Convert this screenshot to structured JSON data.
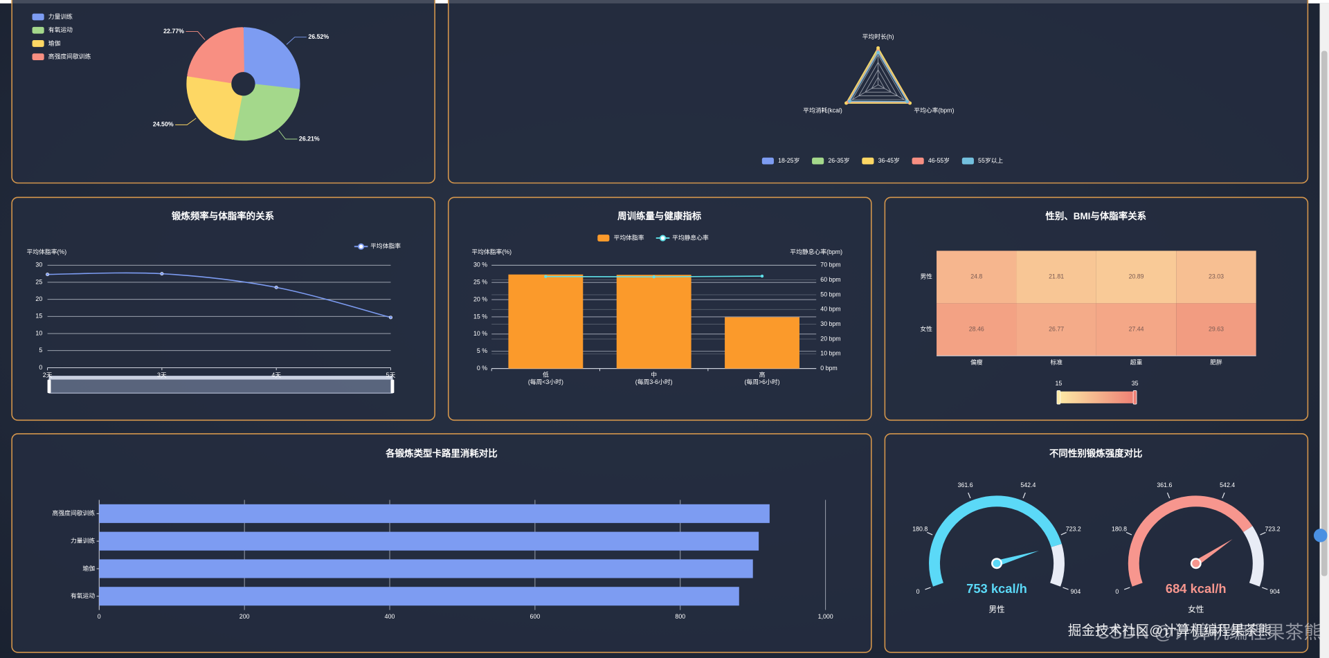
{
  "chart_data": [
    {
      "type": "pie",
      "categories": [
        "力量训练",
        "有氧运动",
        "瑜伽",
        "高强度间歇训练"
      ],
      "values": [
        26.52,
        26.21,
        24.5,
        22.77
      ],
      "value_labels": [
        "26.52%",
        "26.21%",
        "24.50%",
        "22.77%"
      ],
      "colors": [
        "#7d9cf2",
        "#a4d88b",
        "#fdd764",
        "#f88f82"
      ],
      "legend": "top-left"
    },
    {
      "type": "radar",
      "indicators": [
        {
          "name": "平均时长(h)",
          "max": 1.5
        },
        {
          "name": "平均消耗(kcal)",
          "max": 600
        },
        {
          "name": "平均心率(bpm)",
          "max": 150
        }
      ],
      "series": [
        {
          "name": "18-25岁",
          "color": "#7d9cf2",
          "values": [
            1.38,
            560,
            141
          ]
        },
        {
          "name": "26-35岁",
          "color": "#a4d88b",
          "values": [
            1.42,
            575,
            143
          ]
        },
        {
          "name": "36-45岁",
          "color": "#fdd764",
          "values": [
            1.48,
            592,
            148
          ]
        },
        {
          "name": "46-55岁",
          "color": "#f88f82",
          "values": [
            1.35,
            550,
            139
          ]
        },
        {
          "name": "55岁以上",
          "color": "#73c0de",
          "values": [
            1.3,
            530,
            135
          ]
        }
      ],
      "legend": "bottom"
    },
    {
      "type": "line",
      "title": "锻炼频率与体脂率的关系",
      "y_label": "平均体脂率(%)",
      "categories": [
        "2天",
        "3天",
        "4天",
        "5天"
      ],
      "series": [
        {
          "name": "平均体脂率",
          "color": "#7d9cf2",
          "values": [
            27.3,
            27.5,
            23.5,
            14.7
          ]
        }
      ],
      "ylim": [
        0,
        30
      ],
      "yticks": [
        0,
        5,
        10,
        15,
        20,
        25,
        30
      ],
      "grid": true,
      "smooth": true,
      "legend": "top-right",
      "data_zoom": true
    },
    {
      "type": "bar",
      "title": "周训练量与健康指标",
      "y_label": "平均体脂率(%)",
      "y2_label": "平均静息心率(bpm)",
      "categories": [
        "低\n(每周<3小时)",
        "中\n(每周3-6小时)",
        "高\n(每周>6小时)"
      ],
      "series": [
        {
          "name": "平均体脂率",
          "type": "bar",
          "color": "#fb9a2b",
          "values": [
            27.3,
            27.2,
            14.9
          ]
        },
        {
          "name": "平均静息心率",
          "type": "line",
          "axis": "y2",
          "color": "#5ee0e8",
          "values": [
            62.3,
            62.1,
            62.6
          ]
        }
      ],
      "ylim": [
        0,
        30
      ],
      "yticks": [
        {
          "value": 0,
          "label": "0 %"
        },
        {
          "value": 5,
          "label": "5 %"
        },
        {
          "value": 10,
          "label": "10 %"
        },
        {
          "value": 15,
          "label": "15 %"
        },
        {
          "value": 20,
          "label": "20 %"
        },
        {
          "value": 25,
          "label": "25 %"
        },
        {
          "value": 30,
          "label": "30 %"
        }
      ],
      "y2lim": [
        0,
        70
      ],
      "y2ticks": [
        {
          "value": 0,
          "label": "0 bpm"
        },
        {
          "value": 10,
          "label": "10 bpm"
        },
        {
          "value": 20,
          "label": "20 bpm"
        },
        {
          "value": 30,
          "label": "30 bpm"
        },
        {
          "value": 40,
          "label": "40 bpm"
        },
        {
          "value": 50,
          "label": "50 bpm"
        },
        {
          "value": 60,
          "label": "60 bpm"
        },
        {
          "value": 70,
          "label": "70 bpm"
        }
      ],
      "grid": true,
      "legend": "top"
    },
    {
      "type": "heatmap",
      "title": "性别、BMI与体脂率关系",
      "rows": [
        "男性",
        "女性"
      ],
      "columns": [
        "偏瘦",
        "标准",
        "超重",
        "肥胖"
      ],
      "values": [
        [
          24.8,
          21.81,
          20.89,
          23.03
        ],
        [
          28.46,
          26.77,
          27.44,
          29.63
        ]
      ],
      "visual_range": [
        15,
        35
      ],
      "colors": [
        "#fdeaa6",
        "#ee7f74"
      ]
    },
    {
      "type": "bar",
      "horizontal": true,
      "title": "各锻炼类型卡路里消耗对比",
      "categories": [
        "有氧运动",
        "瑜伽",
        "力量训练",
        "高强度间歇训练"
      ],
      "values": [
        881,
        900,
        908,
        923
      ],
      "color": "#7d9cf2",
      "xlim": [
        0,
        1000
      ],
      "xticks": [
        0,
        200,
        400,
        600,
        800,
        {
          "value": 1000,
          "label": "1,000"
        }
      ],
      "grid": true
    },
    {
      "type": "gauge",
      "title": "不同性别锻炼强度对比",
      "categories": [
        "男性",
        "女性"
      ],
      "values": [
        753,
        684
      ],
      "value_labels": [
        "753 kcal/h",
        "684 kcal/h"
      ],
      "colors": [
        "#5bd9f7",
        "#f7968e"
      ],
      "range": [
        0,
        904
      ],
      "ticks": [
        0,
        180.8,
        361.6,
        542.4,
        723.2,
        904
      ]
    }
  ],
  "watermark": [
    "掘金技术社区@计算机编程果茶熊",
    "CSDN @计算机编程果茶熊"
  ]
}
